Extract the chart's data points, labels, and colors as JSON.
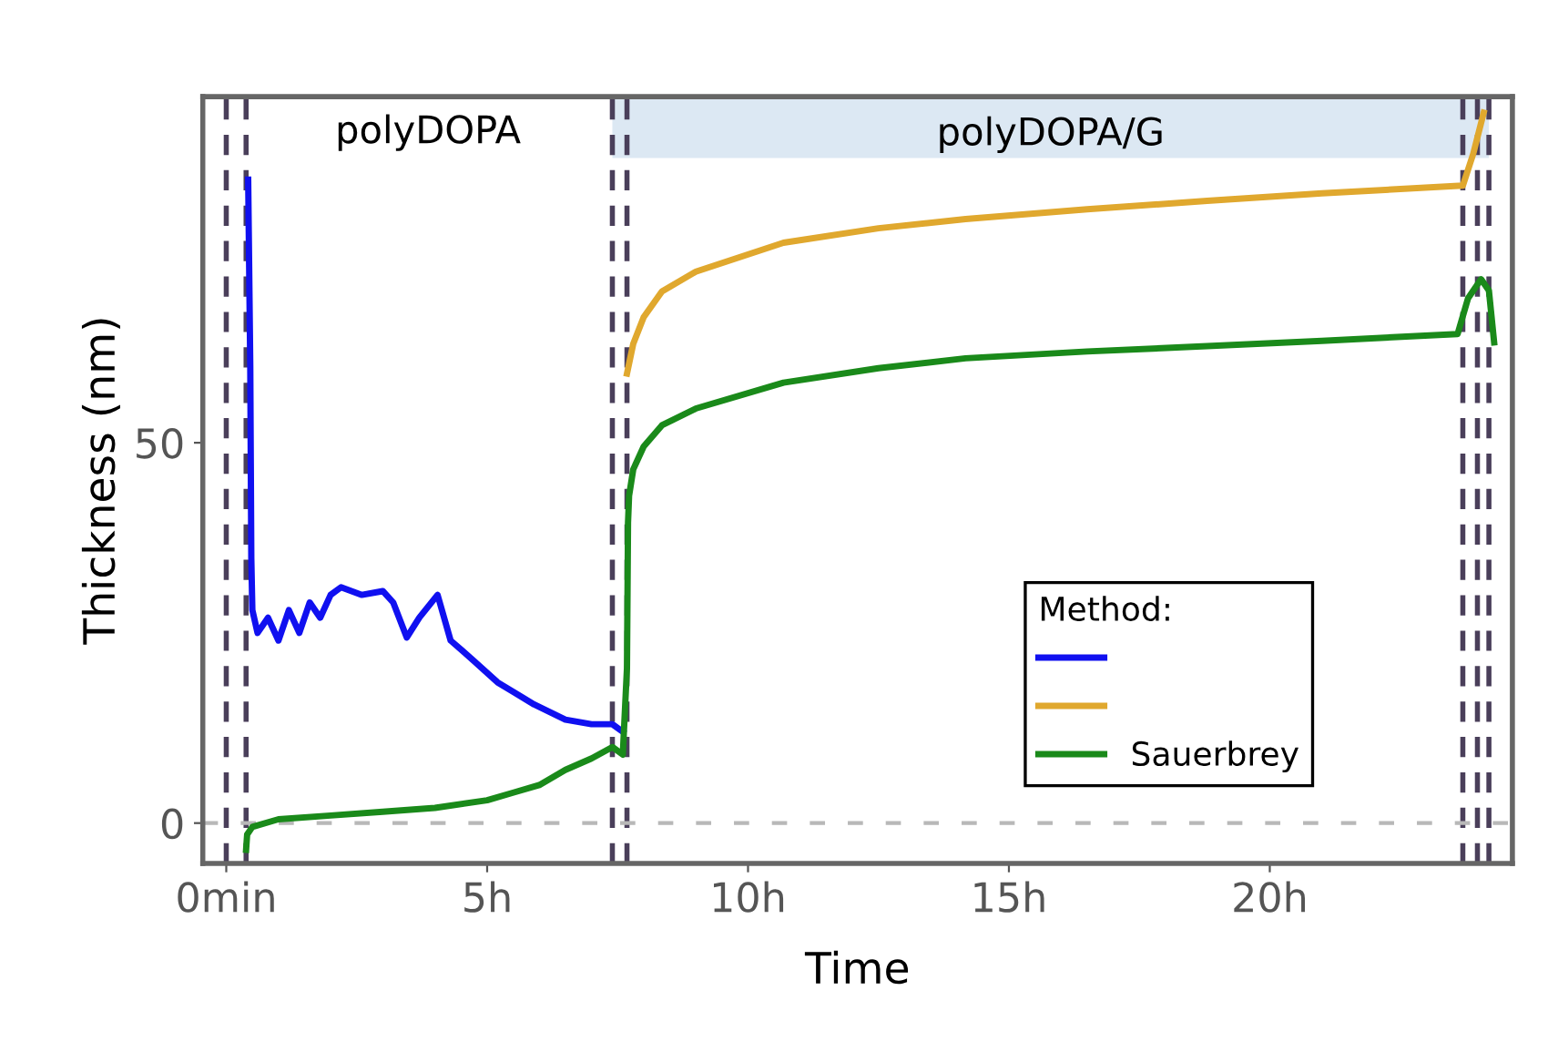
{
  "chart_data": {
    "type": "line",
    "xlabel": "Time",
    "ylabel": "Thickness (nm)",
    "legend_title": "Method:",
    "legend": "bottom right",
    "grid": false,
    "xlim": [
      -0.45,
      24.65
    ],
    "ylim": [
      -5.3,
      95.5
    ],
    "xticks": [
      {
        "value": 0,
        "label": "0min"
      },
      {
        "value": 5,
        "label": "5h"
      },
      {
        "value": 10,
        "label": "10h"
      },
      {
        "value": 15,
        "label": "15h"
      },
      {
        "value": 20,
        "label": "20h"
      }
    ],
    "yticks": [
      0,
      50
    ],
    "series": [
      {
        "color": "#1010f0",
        "x": [
          0.42,
          0.46,
          0.48,
          0.5,
          0.6,
          0.8,
          1.0,
          1.2,
          1.4,
          1.6,
          1.8,
          2.0,
          2.2,
          2.6,
          3.0,
          3.2,
          3.46,
          3.7,
          4.05,
          4.3,
          4.75,
          5.2,
          5.9,
          6.5,
          7.0,
          7.4,
          7.6
        ],
        "values": [
          84.6,
          60,
          34.8,
          28,
          25,
          27,
          24,
          28,
          25,
          29,
          27,
          30,
          31,
          30,
          30.5,
          29,
          24.4,
          27,
          30,
          24,
          21.3,
          18.5,
          15.6,
          13.6,
          13,
          13,
          12
        ]
      },
      {
        "color": "#e0a82e",
        "x": [
          7.68,
          7.8,
          8.0,
          8.35,
          9.0,
          10.68,
          12.5,
          14.17,
          16.5,
          18.8,
          21.0,
          23.7,
          23.9,
          24.1
        ],
        "values": [
          59.1,
          63,
          66.5,
          69.9,
          72.5,
          76.3,
          78.2,
          79.4,
          80.7,
          81.8,
          82.8,
          83.8,
          88,
          93.4
        ]
      },
      {
        "name": "Sauerbrey",
        "color": "#1a8a1a",
        "x": [
          0.38,
          0.4,
          0.5,
          1.0,
          2.0,
          3.0,
          4.0,
          5.0,
          5.5,
          6.0,
          6.5,
          7.0,
          7.4,
          7.6,
          7.68,
          7.7,
          7.72,
          7.8,
          8.0,
          8.35,
          9.0,
          10.68,
          12.5,
          14.17,
          16.5,
          18.8,
          21.0,
          23.6,
          23.8,
          24.05,
          24.2,
          24.3
        ],
        "values": [
          -3.5,
          -1.5,
          -0.5,
          0.5,
          1,
          1.5,
          2,
          3,
          4,
          5,
          7,
          8.5,
          10,
          9,
          20.4,
          39.5,
          43,
          46.5,
          49.5,
          52.3,
          54.5,
          57.9,
          59.8,
          61.1,
          62,
          62.7,
          63.4,
          64.3,
          69,
          71.5,
          70,
          63.2
        ]
      }
    ],
    "ref_lines": [
      {
        "axis": "x",
        "value": 0,
        "color": "#4a3f5a",
        "line_style": "dashed"
      },
      {
        "axis": "x",
        "value": 0.38,
        "color": "#4a3f5a",
        "line_style": "dashed"
      },
      {
        "axis": "x",
        "value": 7.4,
        "color": "#4a3f5a",
        "line_style": "dashed"
      },
      {
        "axis": "x",
        "value": 7.68,
        "color": "#4a3f5a",
        "line_style": "dashed"
      },
      {
        "axis": "x",
        "value": 23.7,
        "color": "#4a3f5a",
        "line_style": "dashed"
      },
      {
        "axis": "x",
        "value": 23.98,
        "color": "#4a3f5a",
        "line_style": "dashed"
      },
      {
        "axis": "x",
        "value": 24.2,
        "color": "#4a3f5a",
        "line_style": "dashed"
      },
      {
        "axis": "y",
        "value": 0,
        "color": "#b8b8b8",
        "line_style": "dashed"
      }
    ],
    "bands": [
      {
        "axis": "x",
        "from": 7.4,
        "to": 24.2,
        "label": "polyDOPA/G",
        "color": "#dce8f3"
      }
    ],
    "annotations": [
      "polyDOPA"
    ]
  }
}
